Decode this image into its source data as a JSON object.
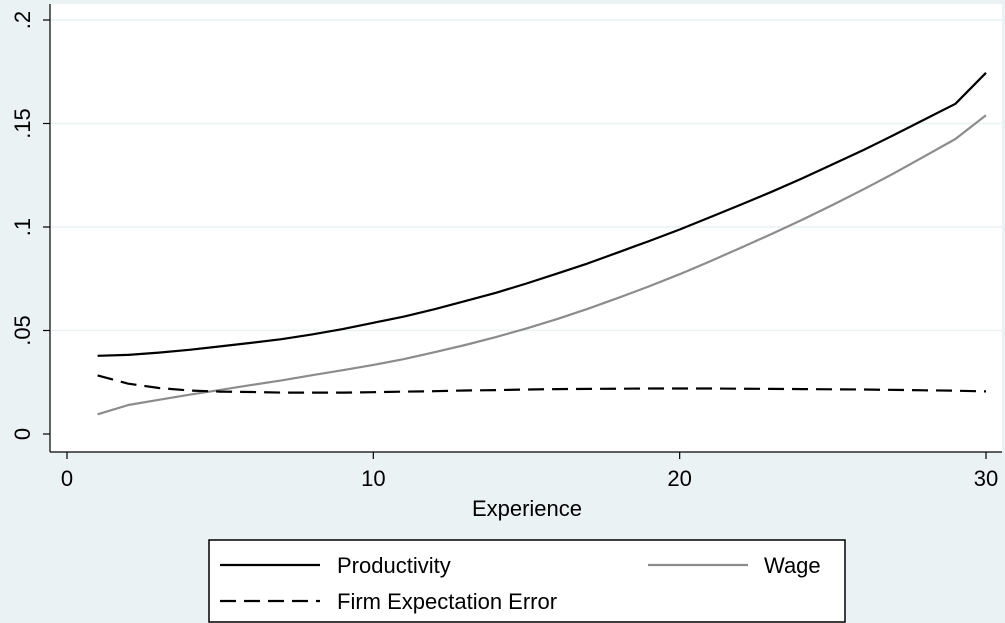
{
  "chart_data": {
    "type": "line",
    "title": "",
    "xlabel": "Experience",
    "ylabel": "",
    "xlim": [
      0,
      30
    ],
    "ylim": [
      0,
      0.2
    ],
    "x_ticks": [
      0,
      10,
      20,
      30
    ],
    "x_tick_labels": [
      "0",
      "10",
      "20",
      "30"
    ],
    "y_ticks": [
      0,
      0.05,
      0.1,
      0.15,
      0.2
    ],
    "y_tick_labels": [
      "0",
      ".05",
      ".1",
      ".15",
      ".2"
    ],
    "grid": "horizontal",
    "legend_position": "bottom",
    "series": [
      {
        "name": "Productivity",
        "color": "#000000",
        "style": "solid",
        "x": [
          1,
          2,
          3,
          4,
          5,
          6,
          7,
          8,
          9,
          10,
          11,
          12,
          13,
          14,
          15,
          16,
          17,
          18,
          19,
          20,
          21,
          22,
          23,
          24,
          25,
          26,
          27,
          28,
          29,
          30
        ],
        "y": [
          0.0378,
          0.0382,
          0.0393,
          0.0407,
          0.0423,
          0.044,
          0.0458,
          0.0481,
          0.0507,
          0.0537,
          0.0567,
          0.0603,
          0.0642,
          0.0682,
          0.0727,
          0.0775,
          0.0824,
          0.0878,
          0.0932,
          0.0988,
          0.1048,
          0.1108,
          0.117,
          0.1235,
          0.1303,
          0.1372,
          0.1445,
          0.152,
          0.1595,
          0.1745
        ]
      },
      {
        "name": "Wage",
        "color": "#8c8c8c",
        "style": "solid",
        "x": [
          1,
          2,
          3,
          4,
          5,
          6,
          7,
          8,
          9,
          10,
          11,
          12,
          13,
          14,
          15,
          16,
          17,
          18,
          19,
          20,
          21,
          22,
          23,
          24,
          25,
          26,
          27,
          28,
          29,
          30
        ],
        "y": [
          0.0095,
          0.014,
          0.0165,
          0.019,
          0.0213,
          0.0236,
          0.0259,
          0.0284,
          0.0308,
          0.0334,
          0.0362,
          0.0395,
          0.043,
          0.0468,
          0.051,
          0.0555,
          0.0605,
          0.0658,
          0.0713,
          0.0772,
          0.0835,
          0.09,
          0.0966,
          0.1035,
          0.1107,
          0.1182,
          0.126,
          0.1342,
          0.1425,
          0.154
        ]
      },
      {
        "name": "Firm Expectation Error",
        "color": "#000000",
        "style": "dashed",
        "x": [
          1,
          2,
          3,
          4,
          5,
          6,
          7,
          8,
          9,
          10,
          11,
          12,
          13,
          14,
          15,
          16,
          17,
          18,
          19,
          20,
          21,
          22,
          23,
          24,
          25,
          26,
          27,
          28,
          29,
          30
        ],
        "y": [
          0.0283,
          0.0243,
          0.0222,
          0.021,
          0.0205,
          0.0203,
          0.02,
          0.02,
          0.02,
          0.0202,
          0.0205,
          0.0207,
          0.021,
          0.0212,
          0.0215,
          0.0217,
          0.0218,
          0.0219,
          0.022,
          0.022,
          0.022,
          0.0219,
          0.0218,
          0.0217,
          0.0216,
          0.0215,
          0.0213,
          0.0211,
          0.0209,
          0.0206
        ]
      }
    ]
  }
}
